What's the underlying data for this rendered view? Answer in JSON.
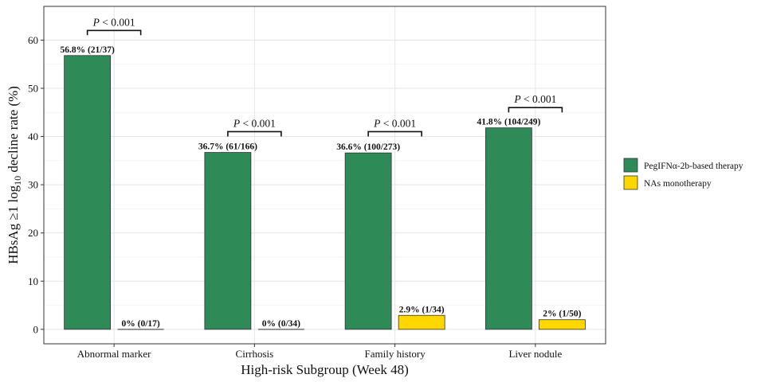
{
  "chart_data": {
    "type": "bar",
    "title": "",
    "xlabel": "High-risk Subgroup (Week 48)",
    "ylabel": {
      "prefix": "HBsAg ≥1 log",
      "subscript": "10",
      "suffix": " decline rate (%)"
    },
    "ylim": [
      -3,
      67
    ],
    "yticks": [
      0,
      10,
      20,
      30,
      40,
      50,
      60
    ],
    "grid": true,
    "legend_position": "right",
    "categories": [
      "Abnormal marker",
      "Cirrhosis",
      "Family history",
      "Liver nodule"
    ],
    "series": [
      {
        "name": "PegIFNα-2b-based therapy",
        "color": "#2e8b57",
        "values": [
          56.8,
          36.7,
          36.6,
          41.8
        ],
        "labels": [
          "56.8% (21/37)",
          "36.7% (61/166)",
          "36.6% (100/273)",
          "41.8% (104/249)"
        ]
      },
      {
        "name": "NAs monotherapy",
        "color": "#ffd700",
        "values": [
          0,
          0,
          2.9,
          2.0
        ],
        "labels": [
          "0% (0/17)",
          "0% (0/34)",
          "2.9% (1/34)",
          "2% (1/50)"
        ]
      }
    ],
    "significance": [
      {
        "p_symbol": "P",
        "text": " < 0.001",
        "bracket_y": 62
      },
      {
        "p_symbol": "P",
        "text": " < 0.001",
        "bracket_y": 41
      },
      {
        "p_symbol": "P",
        "text": " < 0.001",
        "bracket_y": 41
      },
      {
        "p_symbol": "P",
        "text": " < 0.001",
        "bracket_y": 46
      }
    ]
  }
}
